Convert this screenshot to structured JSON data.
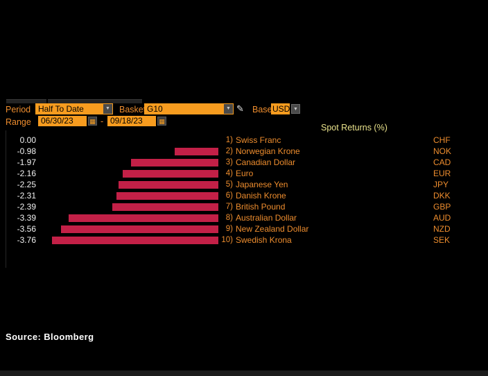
{
  "toolbar": {
    "period_label": "Period",
    "period_value": "Half To Date",
    "basket_label": "Basket",
    "basket_value": "G10",
    "base_label": "Base",
    "base_value": "USD",
    "range_label": "Range",
    "range_start": "06/30/23",
    "range_separator": "-",
    "range_end": "09/18/23",
    "dropdown_arrow_glyph": "▼",
    "calendar_icon_glyph": "▦",
    "pencil_icon_glyph": "✎"
  },
  "chart_data": {
    "type": "bar",
    "orientation": "horizontal",
    "title": "Spot Returns (%)",
    "xlim": [
      -3.76,
      0
    ],
    "zero_at_right": true,
    "grid": false,
    "bar_color": "#c32047",
    "rows": [
      {
        "rank": "1)",
        "name": "Swiss Franc",
        "code": "CHF",
        "value": 0.0,
        "value_label": "0.00"
      },
      {
        "rank": "2)",
        "name": "Norwegian Krone",
        "code": "NOK",
        "value": -0.98,
        "value_label": "-0.98"
      },
      {
        "rank": "3)",
        "name": "Canadian Dollar",
        "code": "CAD",
        "value": -1.97,
        "value_label": "-1.97"
      },
      {
        "rank": "4)",
        "name": "Euro",
        "code": "EUR",
        "value": -2.16,
        "value_label": "-2.16"
      },
      {
        "rank": "5)",
        "name": "Japanese Yen",
        "code": "JPY",
        "value": -2.25,
        "value_label": "-2.25"
      },
      {
        "rank": "6)",
        "name": "Danish Krone",
        "code": "DKK",
        "value": -2.31,
        "value_label": "-2.31"
      },
      {
        "rank": "7)",
        "name": "British Pound",
        "code": "GBP",
        "value": -2.39,
        "value_label": "-2.39"
      },
      {
        "rank": "8)",
        "name": "Australian Dollar",
        "code": "AUD",
        "value": -3.39,
        "value_label": "-3.39"
      },
      {
        "rank": "9)",
        "name": "New Zealand Dollar",
        "code": "NZD",
        "value": -3.56,
        "value_label": "-3.56"
      },
      {
        "rank": "10)",
        "name": "Swedish Krona",
        "code": "SEK",
        "value": -3.76,
        "value_label": "-3.76"
      }
    ]
  },
  "footer": {
    "source": "Source: Bloomberg"
  },
  "colors": {
    "accent_orange_text": "#ee8d2e",
    "field_orange": "#f79c1f",
    "bar_red": "#c32047",
    "title_yellow": "#e9e28b",
    "value_white": "#f2f2f2",
    "background": "#000000"
  }
}
